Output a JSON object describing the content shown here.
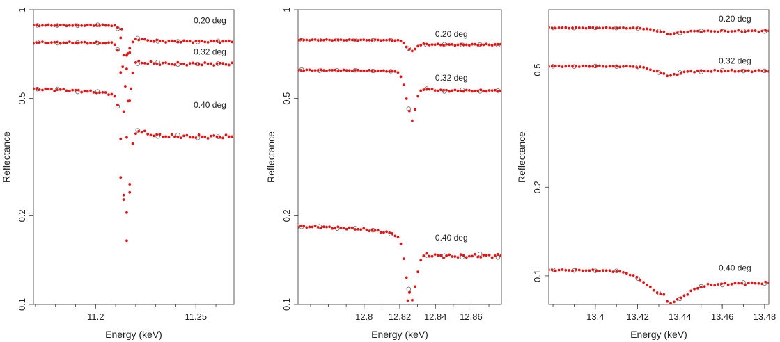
{
  "chart_data": [
    {
      "type": "scatter",
      "xlabel": "Energy (keV)",
      "ylabel": "Reflectance",
      "yscale": "log",
      "xlim": [
        11.169,
        11.269
      ],
      "ylim": [
        0.1,
        1.0
      ],
      "xticks": [
        {
          "v": 11.2,
          "label": "11.2"
        },
        {
          "v": 11.25,
          "label": "11.25"
        }
      ],
      "yticks": [
        {
          "v": 0.1,
          "label": "0.1"
        },
        {
          "v": 0.2,
          "label": "0.2"
        },
        {
          "v": 0.5,
          "label": "0.5"
        },
        {
          "v": 1.0,
          "label": "1"
        }
      ],
      "edge": 11.215,
      "step": 0.0015,
      "open_step": 0.01,
      "series": [
        {
          "name": "0.20 deg",
          "label_pos": [
            11.257,
            0.9
          ],
          "baseline": 0.885,
          "ripple": 0.006,
          "depth": 0.24,
          "width": 0.0018,
          "pre_slope": 0.0,
          "post": 0.78,
          "post_rise": 0.0,
          "post_drift": 0.0,
          "points_below": [
            [
              11.213,
              0.86
            ],
            [
              11.2155,
              0.7
            ],
            [
              11.216,
              0.71
            ],
            [
              11.217,
              0.74
            ]
          ]
        },
        {
          "name": "0.32 deg",
          "label_pos": [
            11.257,
            0.705
          ],
          "baseline": 0.775,
          "ripple": 0.008,
          "depth": 0.48,
          "width": 0.0019,
          "pre_slope": -0.55,
          "post": 0.63,
          "post_rise": 0.04,
          "post_drift": 0.0,
          "points_below": [
            [
              11.2135,
              0.64
            ],
            [
              11.2148,
              0.55
            ],
            [
              11.2162,
              0.49
            ],
            [
              11.2177,
              0.54
            ]
          ]
        },
        {
          "name": "0.40 deg",
          "label_pos": [
            11.257,
            0.465
          ],
          "baseline": 0.545,
          "ripple": 0.01,
          "depth": 0.63,
          "width": 0.002,
          "pre_slope": -4.8,
          "post": 0.36,
          "post_rise": 0.03,
          "post_drift": 0.0,
          "points_below": [
            [
              11.2125,
              0.27
            ],
            [
              11.214,
              0.235
            ],
            [
              11.2155,
              0.205
            ],
            [
              11.217,
              0.24
            ]
          ]
        }
      ]
    },
    {
      "type": "scatter",
      "xlabel": "Energy (keV)",
      "ylabel": "Reflectance",
      "yscale": "log",
      "xlim": [
        12.763,
        12.877
      ],
      "ylim": [
        0.1,
        1.0
      ],
      "xticks": [
        {
          "v": 12.8,
          "label": "12.8"
        },
        {
          "v": 12.82,
          "label": "12.82"
        },
        {
          "v": 12.84,
          "label": "12.84"
        },
        {
          "v": 12.86,
          "label": "12.86"
        }
      ],
      "yticks": [
        {
          "v": 0.1,
          "label": "0.1"
        },
        {
          "v": 0.2,
          "label": "0.2"
        },
        {
          "v": 0.5,
          "label": "0.5"
        },
        {
          "v": 1.0,
          "label": "1"
        }
      ],
      "edge": 12.826,
      "step": 0.0016,
      "open_step": 0.01,
      "series": [
        {
          "name": "0.20 deg",
          "label_pos": [
            12.849,
            0.81
          ],
          "baseline": 0.79,
          "ripple": 0.004,
          "depth": 0.07,
          "width": 0.0025,
          "pre_slope": -0.25,
          "post": 0.76,
          "post_rise": 0.0,
          "post_drift": 0.06,
          "points_below": []
        },
        {
          "name": "0.32 deg",
          "label_pos": [
            12.849,
            0.575
          ],
          "baseline": 0.625,
          "ripple": 0.005,
          "depth": 0.27,
          "width": 0.0027,
          "pre_slope": -1.1,
          "post": 0.53,
          "post_rise": 0.0,
          "post_drift": 0.09,
          "points_below": []
        },
        {
          "name": "0.40 deg",
          "label_pos": [
            12.849,
            0.165
          ],
          "baseline": 0.186,
          "ripple": 0.01,
          "depth": 0.36,
          "width": 0.003,
          "pre_slope": -7.0,
          "post": 0.145,
          "post_rise": 0.0,
          "post_drift": 0.33,
          "points_below": [
            [
              12.8245,
              0.103
            ],
            [
              12.8255,
              0.11
            ]
          ]
        }
      ]
    },
    {
      "type": "scatter",
      "xlabel": "Energy (keV)",
      "ylabel": "Reflectance",
      "yscale": "log",
      "xlim": [
        13.378,
        13.482
      ],
      "ylim": [
        0.08,
        0.8
      ],
      "xticks": [
        {
          "v": 13.4,
          "label": "13.4"
        },
        {
          "v": 13.42,
          "label": "13.42"
        },
        {
          "v": 13.44,
          "label": "13.44"
        },
        {
          "v": 13.46,
          "label": "13.46"
        },
        {
          "v": 13.48,
          "label": "13.48"
        }
      ],
      "yticks": [
        {
          "v": 0.1,
          "label": "0.1"
        },
        {
          "v": 0.2,
          "label": "0.2"
        },
        {
          "v": 0.5,
          "label": "0.5"
        }
      ],
      "edge": 13.433,
      "step": 0.0016,
      "open_step": 0.01,
      "series": [
        {
          "name": "0.20 deg",
          "label_pos": [
            13.466,
            0.73
          ],
          "baseline": 0.695,
          "ripple": 0.004,
          "depth": 0.03,
          "width": 0.005,
          "pre_slope": -0.3,
          "post": 0.675,
          "post_rise": 0.0,
          "post_drift": 0.15,
          "points_below": []
        },
        {
          "name": "0.32 deg",
          "label_pos": [
            13.466,
            0.525
          ],
          "baseline": 0.515,
          "ripple": 0.005,
          "depth": 0.05,
          "width": 0.0055,
          "pre_slope": -0.4,
          "post": 0.495,
          "post_rise": 0.0,
          "post_drift": 0.12,
          "points_below": []
        },
        {
          "name": "0.40 deg",
          "label_pos": [
            13.466,
            0.104
          ],
          "baseline": 0.105,
          "ripple": 0.006,
          "depth": 0.16,
          "width": 0.0085,
          "pre_slope": -1.8,
          "post": 0.093,
          "post_rise": 0.0,
          "post_drift": 0.6,
          "points_below": []
        }
      ]
    }
  ]
}
